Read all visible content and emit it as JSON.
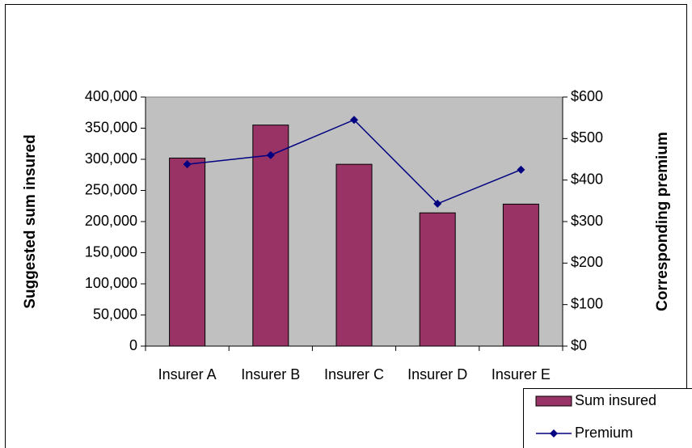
{
  "chart_data": {
    "type": "combo",
    "categories": [
      "Insurer A",
      "Insurer B",
      "Insurer C",
      "Insurer D",
      "Insurer E"
    ],
    "series": [
      {
        "name": "Sum insured",
        "type": "bar",
        "color": "#993366",
        "values": [
          302000,
          355000,
          292000,
          214000,
          228000
        ]
      },
      {
        "name": "Premium",
        "type": "line",
        "axis": "y2",
        "color": "#000080",
        "values": [
          438,
          460,
          545,
          343,
          425
        ]
      }
    ],
    "ylabel": "Suggested sum insured",
    "y2label": "Corresponding premium",
    "ylim": [
      0,
      400000
    ],
    "yticks": [
      0,
      {
        "value": 50000,
        "label": "50,000"
      },
      {
        "value": 100000,
        "label": "100,000"
      },
      {
        "value": 150000,
        "label": "150,000"
      },
      {
        "value": 200000,
        "label": "200,000"
      },
      {
        "value": 250000,
        "label": "250,000"
      },
      {
        "value": 300000,
        "label": "300,000"
      },
      {
        "value": 350000,
        "label": "350,000"
      },
      {
        "value": 400000,
        "label": "400,000"
      }
    ],
    "y2lim": [
      0,
      600
    ],
    "y2ticks": [
      {
        "value": 0,
        "label": "$0"
      },
      {
        "value": 100,
        "label": "$100"
      },
      {
        "value": 200,
        "label": "$200"
      },
      {
        "value": 300,
        "label": "$300"
      },
      {
        "value": 400,
        "label": "$400"
      },
      {
        "value": 500,
        "label": "$500"
      },
      {
        "value": 600,
        "label": "$600"
      }
    ],
    "plot_background": "#c0c0c0",
    "grid": false,
    "legend": "bottom-right"
  }
}
